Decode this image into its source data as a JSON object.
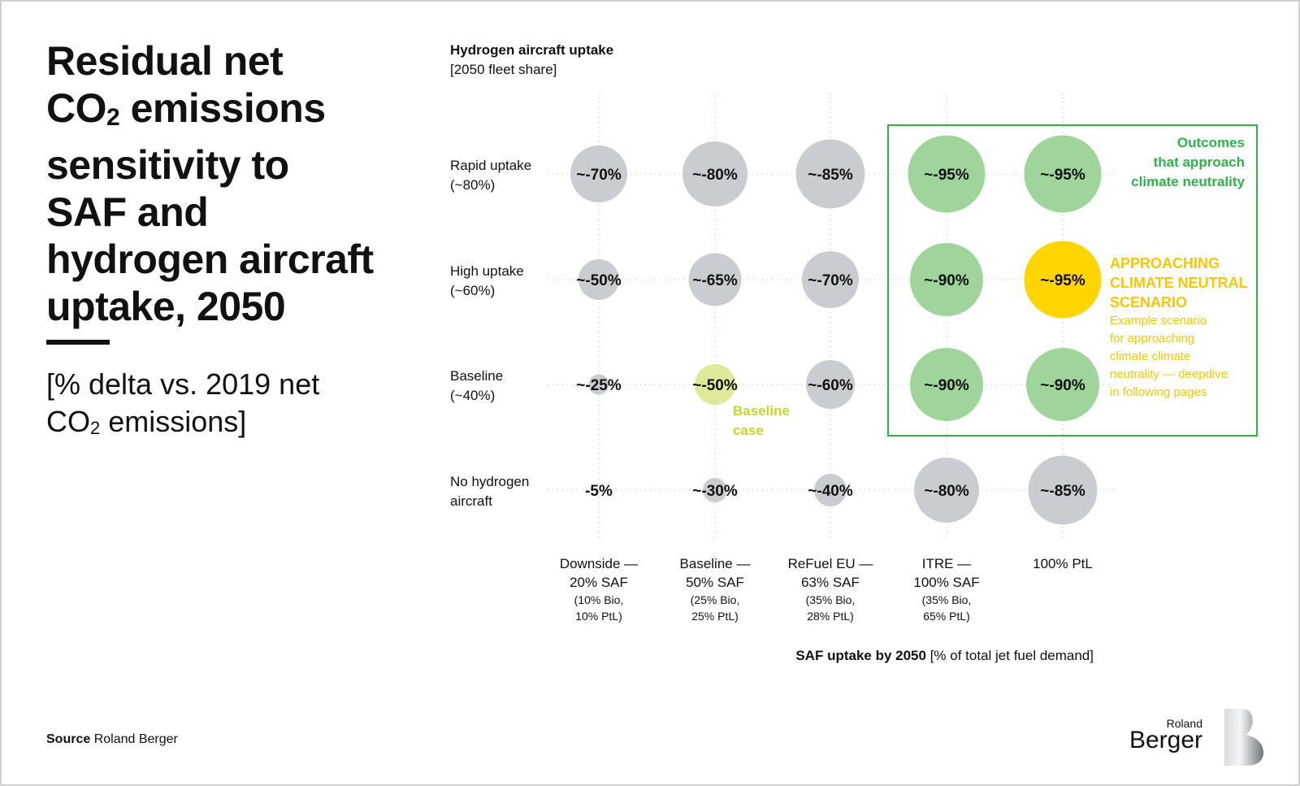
{
  "title": {
    "line1": "Residual net",
    "co": "CO",
    "sub2": "2",
    "line2rest": " emissions",
    "line3": "sensitivity to",
    "line4": "SAF and",
    "line5": "hydrogen aircraft",
    "line6": "uptake, 2050"
  },
  "subtitle": {
    "part1": "[% delta vs. 2019 net",
    "co": "CO",
    "sub2": "2",
    "part2": " emissions]"
  },
  "source": {
    "label": "Source",
    "value": "Roland Berger"
  },
  "logo": {
    "line1": "Roland",
    "line2": "Berger",
    "mark": "B"
  },
  "chart_data": {
    "type": "bubble-matrix",
    "ytitle": "Hydrogen aircraft uptake",
    "ysubtitle": "[2050 fleet share]",
    "xtitle": "SAF uptake by 2050",
    "xsubtitle": "[% of total jet fuel demand]",
    "rows": [
      {
        "label1": "Rapid uptake",
        "label2": "(~80%)"
      },
      {
        "label1": "High uptake",
        "label2": "(~60%)"
      },
      {
        "label1": "Baseline",
        "label2": "(~40%)"
      },
      {
        "label1": "No hydrogen",
        "label2": "aircraft"
      }
    ],
    "columns": [
      {
        "label1": "Downside —",
        "label2": "20% SAF",
        "detail1": "(10% Bio,",
        "detail2": "10% PtL)"
      },
      {
        "label1": "Baseline —",
        "label2": "50% SAF",
        "detail1": "(25% Bio,",
        "detail2": "25% PtL)"
      },
      {
        "label1": "ReFuel EU —",
        "label2": "63% SAF",
        "detail1": "(35% Bio,",
        "detail2": "28% PtL)"
      },
      {
        "label1": "ITRE —",
        "label2": "100% SAF",
        "detail1": "(35% Bio,",
        "detail2": "65% PtL)"
      },
      {
        "label1": "100% PtL",
        "label2": "",
        "detail1": "",
        "detail2": ""
      }
    ],
    "values": [
      [
        -70,
        -80,
        -85,
        -95,
        -95
      ],
      [
        -50,
        -65,
        -70,
        -90,
        -95
      ],
      [
        -25,
        -50,
        -60,
        -90,
        -90
      ],
      [
        -5,
        -30,
        -40,
        -80,
        -85
      ]
    ],
    "labels": [
      [
        "~-70%",
        "~-80%",
        "~-85%",
        "~-95%",
        "~-95%"
      ],
      [
        "~-50%",
        "~-65%",
        "~-70%",
        "~-90%",
        "~-95%"
      ],
      [
        "~-25%",
        "~-50%",
        "~-60%",
        "~-90%",
        "~-90%"
      ],
      [
        "-5%",
        "~-30%",
        "~-40%",
        "~-80%",
        "~-85%"
      ]
    ],
    "categories_color": [
      [
        "gray",
        "gray",
        "gray",
        "green",
        "green"
      ],
      [
        "gray",
        "gray",
        "gray",
        "green",
        "yellow"
      ],
      [
        "gray",
        "baseline",
        "gray",
        "green",
        "green"
      ],
      [
        "gray",
        "gray",
        "gray",
        "gray",
        "gray"
      ]
    ],
    "colors": {
      "gray": "#c9cdd1",
      "green": "#9fd49b",
      "yellow": "#ffd500",
      "baseline": "#dfe999",
      "box": "#2db34a"
    },
    "annotations": {
      "green_box": [
        "Outcomes",
        "that approach",
        "climate neutrality"
      ],
      "yellow_title": [
        "APPROACHING",
        "CLIMATE NEUTRAL",
        "SCENARIO"
      ],
      "yellow_text": [
        "Example scenario",
        "for approaching",
        "climate climate",
        "neutrality — deepdive",
        "in following pages"
      ],
      "baseline": [
        "Baseline",
        "case"
      ]
    }
  }
}
